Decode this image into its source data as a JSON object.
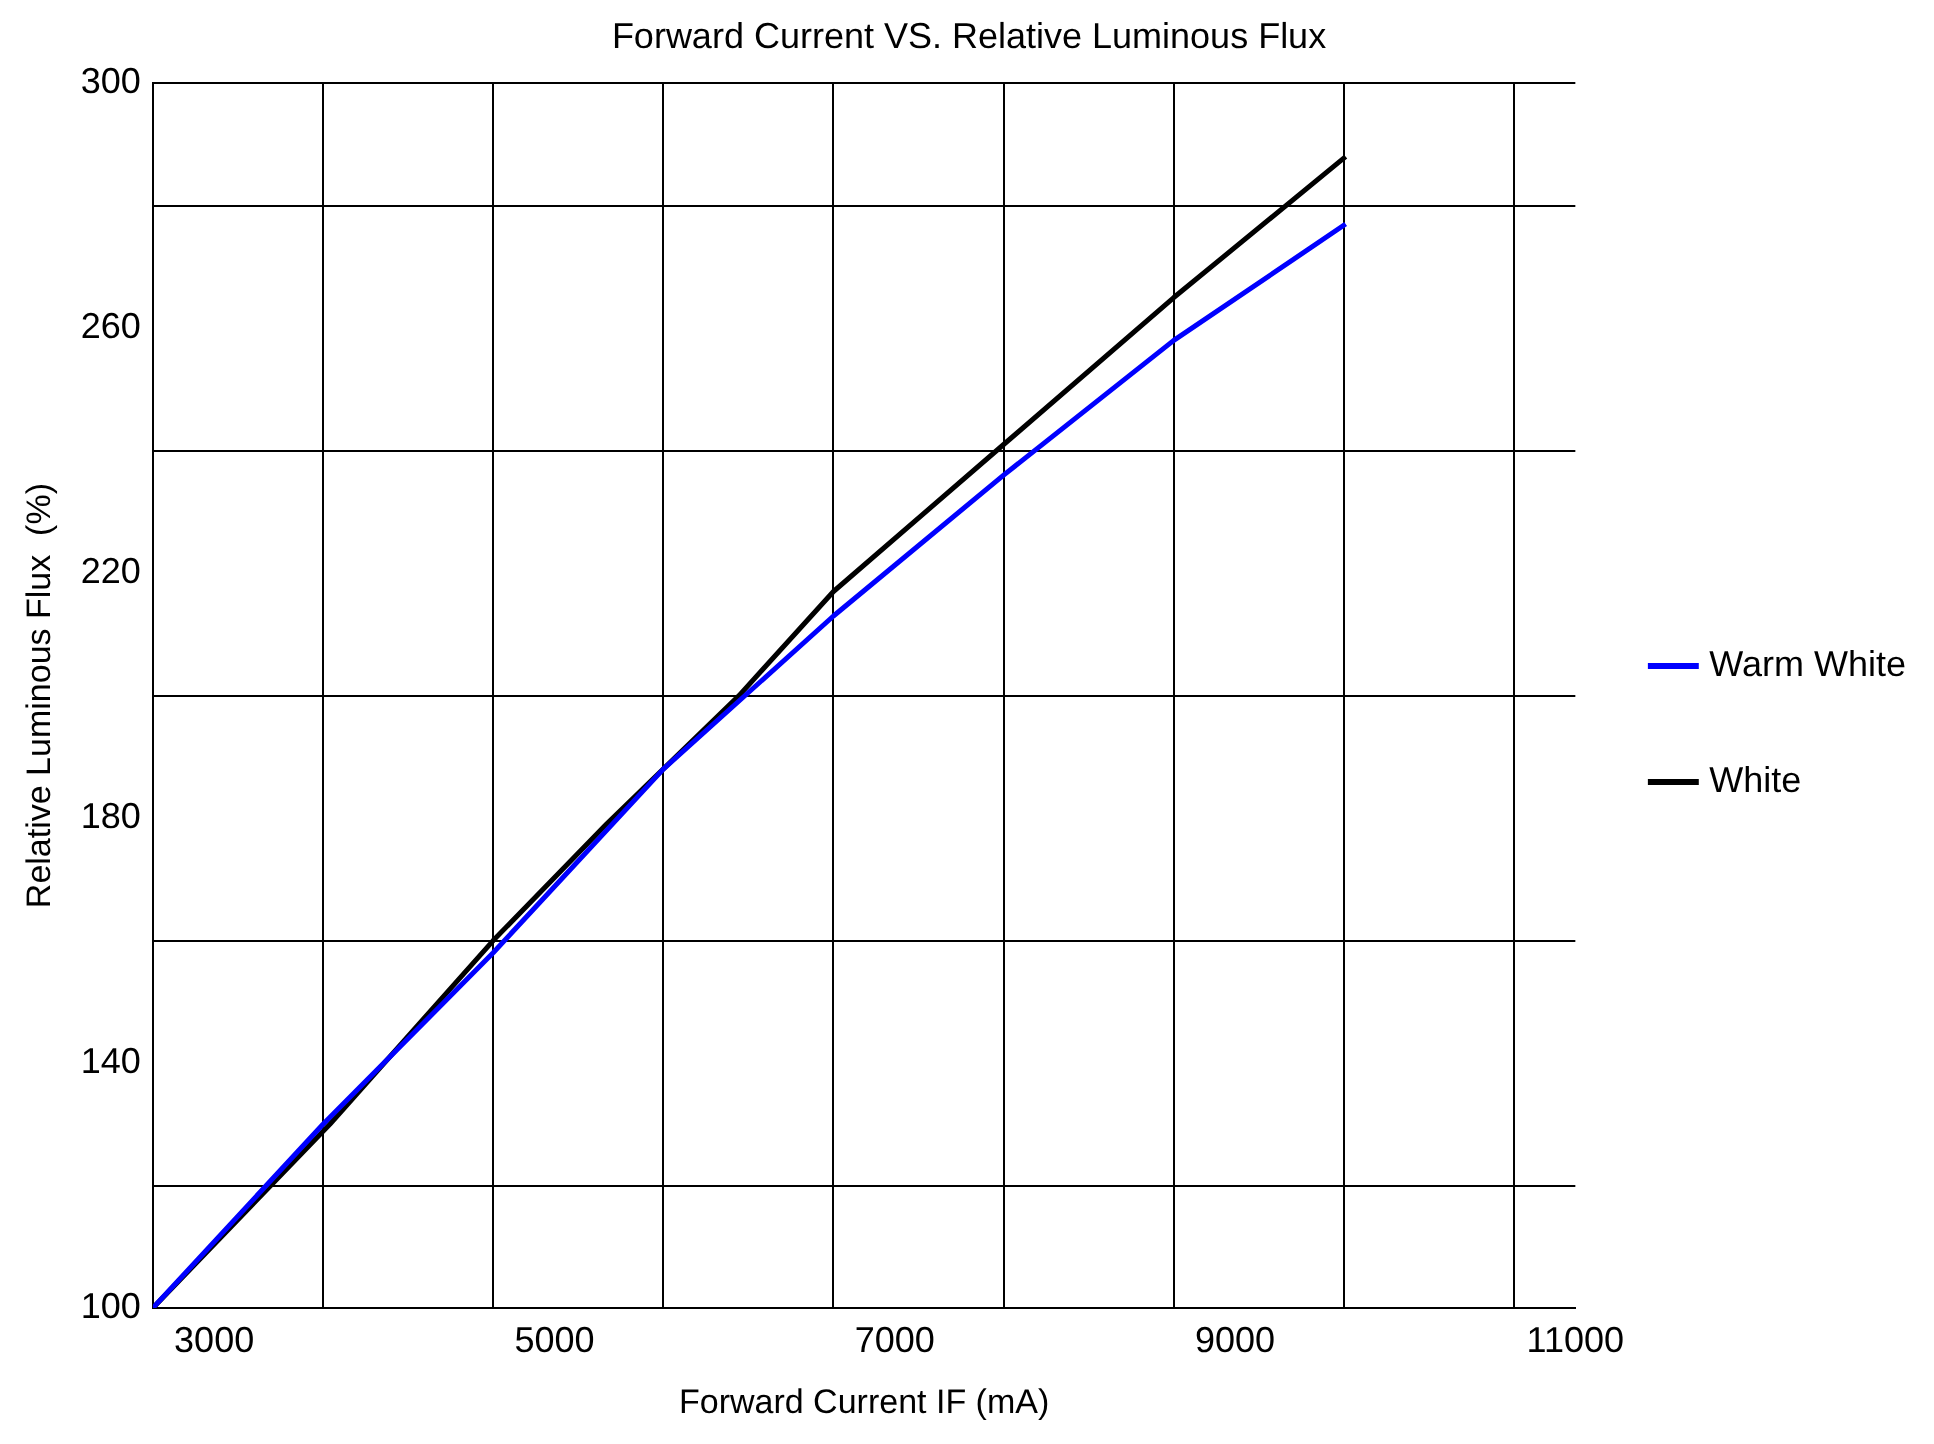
{
  "chart_data": {
    "type": "line",
    "title": "Forward Current VS. Relative Luminous Flux",
    "xlabel": "Forward Current IF (mA)",
    "ylabel": "Relative Luminous Flux  (%)",
    "xlim": [
      2640,
      11000
    ],
    "xticks": [
      {
        "value": 2640,
        "label": null
      },
      3000,
      {
        "value": 3640,
        "label": null
      },
      {
        "value": 4640,
        "label": null
      },
      5000,
      {
        "value": 5640,
        "label": null
      },
      {
        "value": 6640,
        "label": null
      },
      7000,
      {
        "value": 7640,
        "label": null
      },
      {
        "value": 8640,
        "label": null
      },
      9000,
      {
        "value": 9640,
        "label": null
      },
      {
        "value": 10640,
        "label": null
      },
      11000
    ],
    "ylim": [
      100,
      300
    ],
    "yticks": [
      100,
      {
        "value": 120,
        "label": null
      },
      140,
      {
        "value": 160,
        "label": null
      },
      180,
      {
        "value": 200,
        "label": null
      },
      220,
      {
        "value": 240,
        "label": null
      },
      260,
      {
        "value": 280,
        "label": null
      },
      300
    ],
    "grid": true,
    "legend": "right",
    "marker": "none",
    "line_style": "solid",
    "series": [
      {
        "name": "Warm White",
        "color": "#0000ff",
        "x": [
          2640,
          3640,
          4640,
          5640,
          6640,
          7640,
          8640,
          9650
        ],
        "values": [
          100,
          130,
          158,
          188,
          213,
          236,
          258,
          277
        ]
      },
      {
        "name": "White",
        "color": "#000000",
        "x": [
          2640,
          3680,
          4640,
          5305,
          6085,
          6640,
          7640,
          8640,
          9650
        ],
        "values": [
          100,
          130,
          160,
          179,
          200,
          217,
          241,
          265,
          288
        ]
      }
    ]
  }
}
